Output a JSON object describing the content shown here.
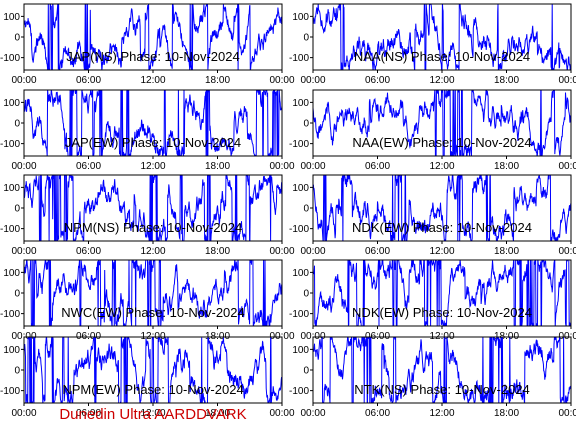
{
  "chart_data": {
    "type": "line",
    "footer": "Dunedin Ultra AARDDVARK",
    "series_color": "#0000ff",
    "x_ticks": [
      "00:00",
      "06:00",
      "12:00",
      "18:00",
      "00:00"
    ],
    "y_ticks": [
      100,
      0,
      -100
    ],
    "ylim": [
      -160,
      160
    ],
    "xlim_hours": [
      0,
      24
    ],
    "panels": [
      {
        "title": "JAP(NS) Phase: 10-Nov-2024",
        "column": "left",
        "row": 1
      },
      {
        "title": "NAA(NS) Phase: 10-Nov-2024",
        "column": "right",
        "row": 1
      },
      {
        "title": "JAP(EW) Phase: 10-Nov-2024",
        "column": "left",
        "row": 2
      },
      {
        "title": "NAA(EW) Phase: 10-Nov-2024",
        "column": "right",
        "row": 2
      },
      {
        "title": "NPM(NS) Phase: 10-Nov-2024",
        "column": "left",
        "row": 3
      },
      {
        "title": "NDK(EW) Phase: 10-Nov-2024",
        "column": "right",
        "row": 3
      },
      {
        "title": "NWC(EW) Phase: 10-Nov-2024",
        "column": "left",
        "row": 4
      },
      {
        "title": "NDK(EW) Phase: 10-Nov-2024",
        "column": "right",
        "row": 4
      },
      {
        "title": "NPM(EW) Phase: 10-Nov-2024",
        "column": "left",
        "row": 5
      },
      {
        "title": "NTK(NS) Phase: 10-Nov-2024",
        "column": "right",
        "row": 5
      }
    ]
  }
}
